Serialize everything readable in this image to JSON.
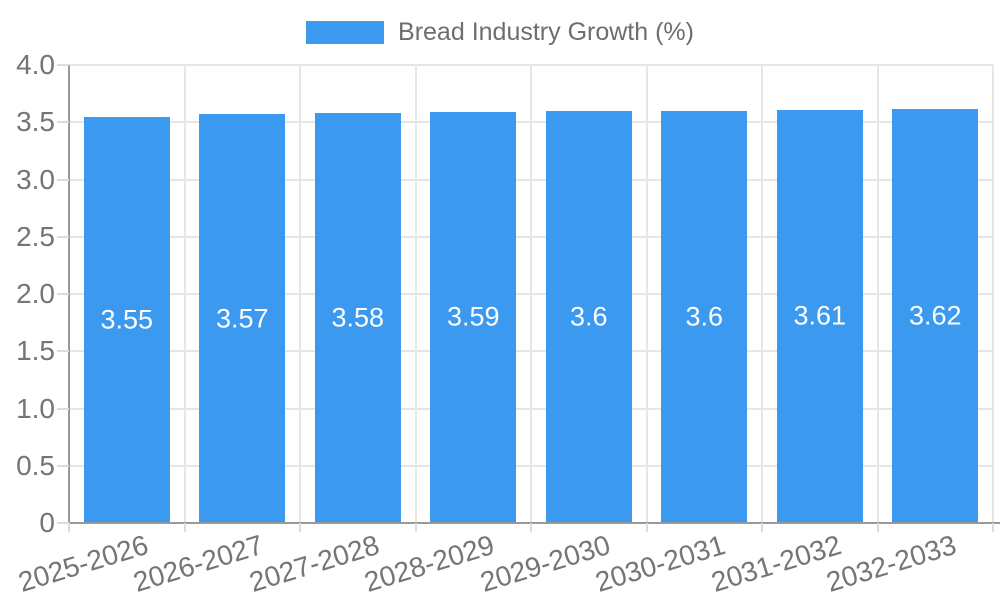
{
  "chart_data": {
    "type": "bar",
    "title": "Bread Industry Growth (%)",
    "categories": [
      "2025-2026",
      "2026-2027",
      "2027-2028",
      "2028-2029",
      "2029-2030",
      "2030-2031",
      "2031-2032",
      "2032-2033"
    ],
    "values": [
      3.55,
      3.57,
      3.58,
      3.59,
      3.6,
      3.6,
      3.61,
      3.62
    ],
    "value_labels": [
      "3.55",
      "3.57",
      "3.58",
      "3.59",
      "3.6",
      "3.6",
      "3.61",
      "3.62"
    ],
    "xlabel": "",
    "ylabel": "",
    "ylim": [
      0,
      4
    ],
    "yticks": [
      0,
      0.5,
      1,
      1.5,
      2,
      2.5,
      3,
      3.5,
      4
    ],
    "ytick_labels": [
      "0",
      "0.5",
      "1.0",
      "1.5",
      "2.0",
      "2.5",
      "3.0",
      "3.5",
      "4.0"
    ],
    "grid": true,
    "legend": {
      "position": "top",
      "label": "Bread Industry Growth (%)"
    },
    "colors": {
      "bar": "#3B99EF",
      "grid": "#E6E6E6",
      "axis": "#9A9A9A",
      "tick_mark": "#DCDCDC",
      "tick_text": "#757575",
      "legend_text": "#6E6E6E",
      "value_text": "#FFFFFF",
      "background": "#FFFFFF"
    }
  }
}
